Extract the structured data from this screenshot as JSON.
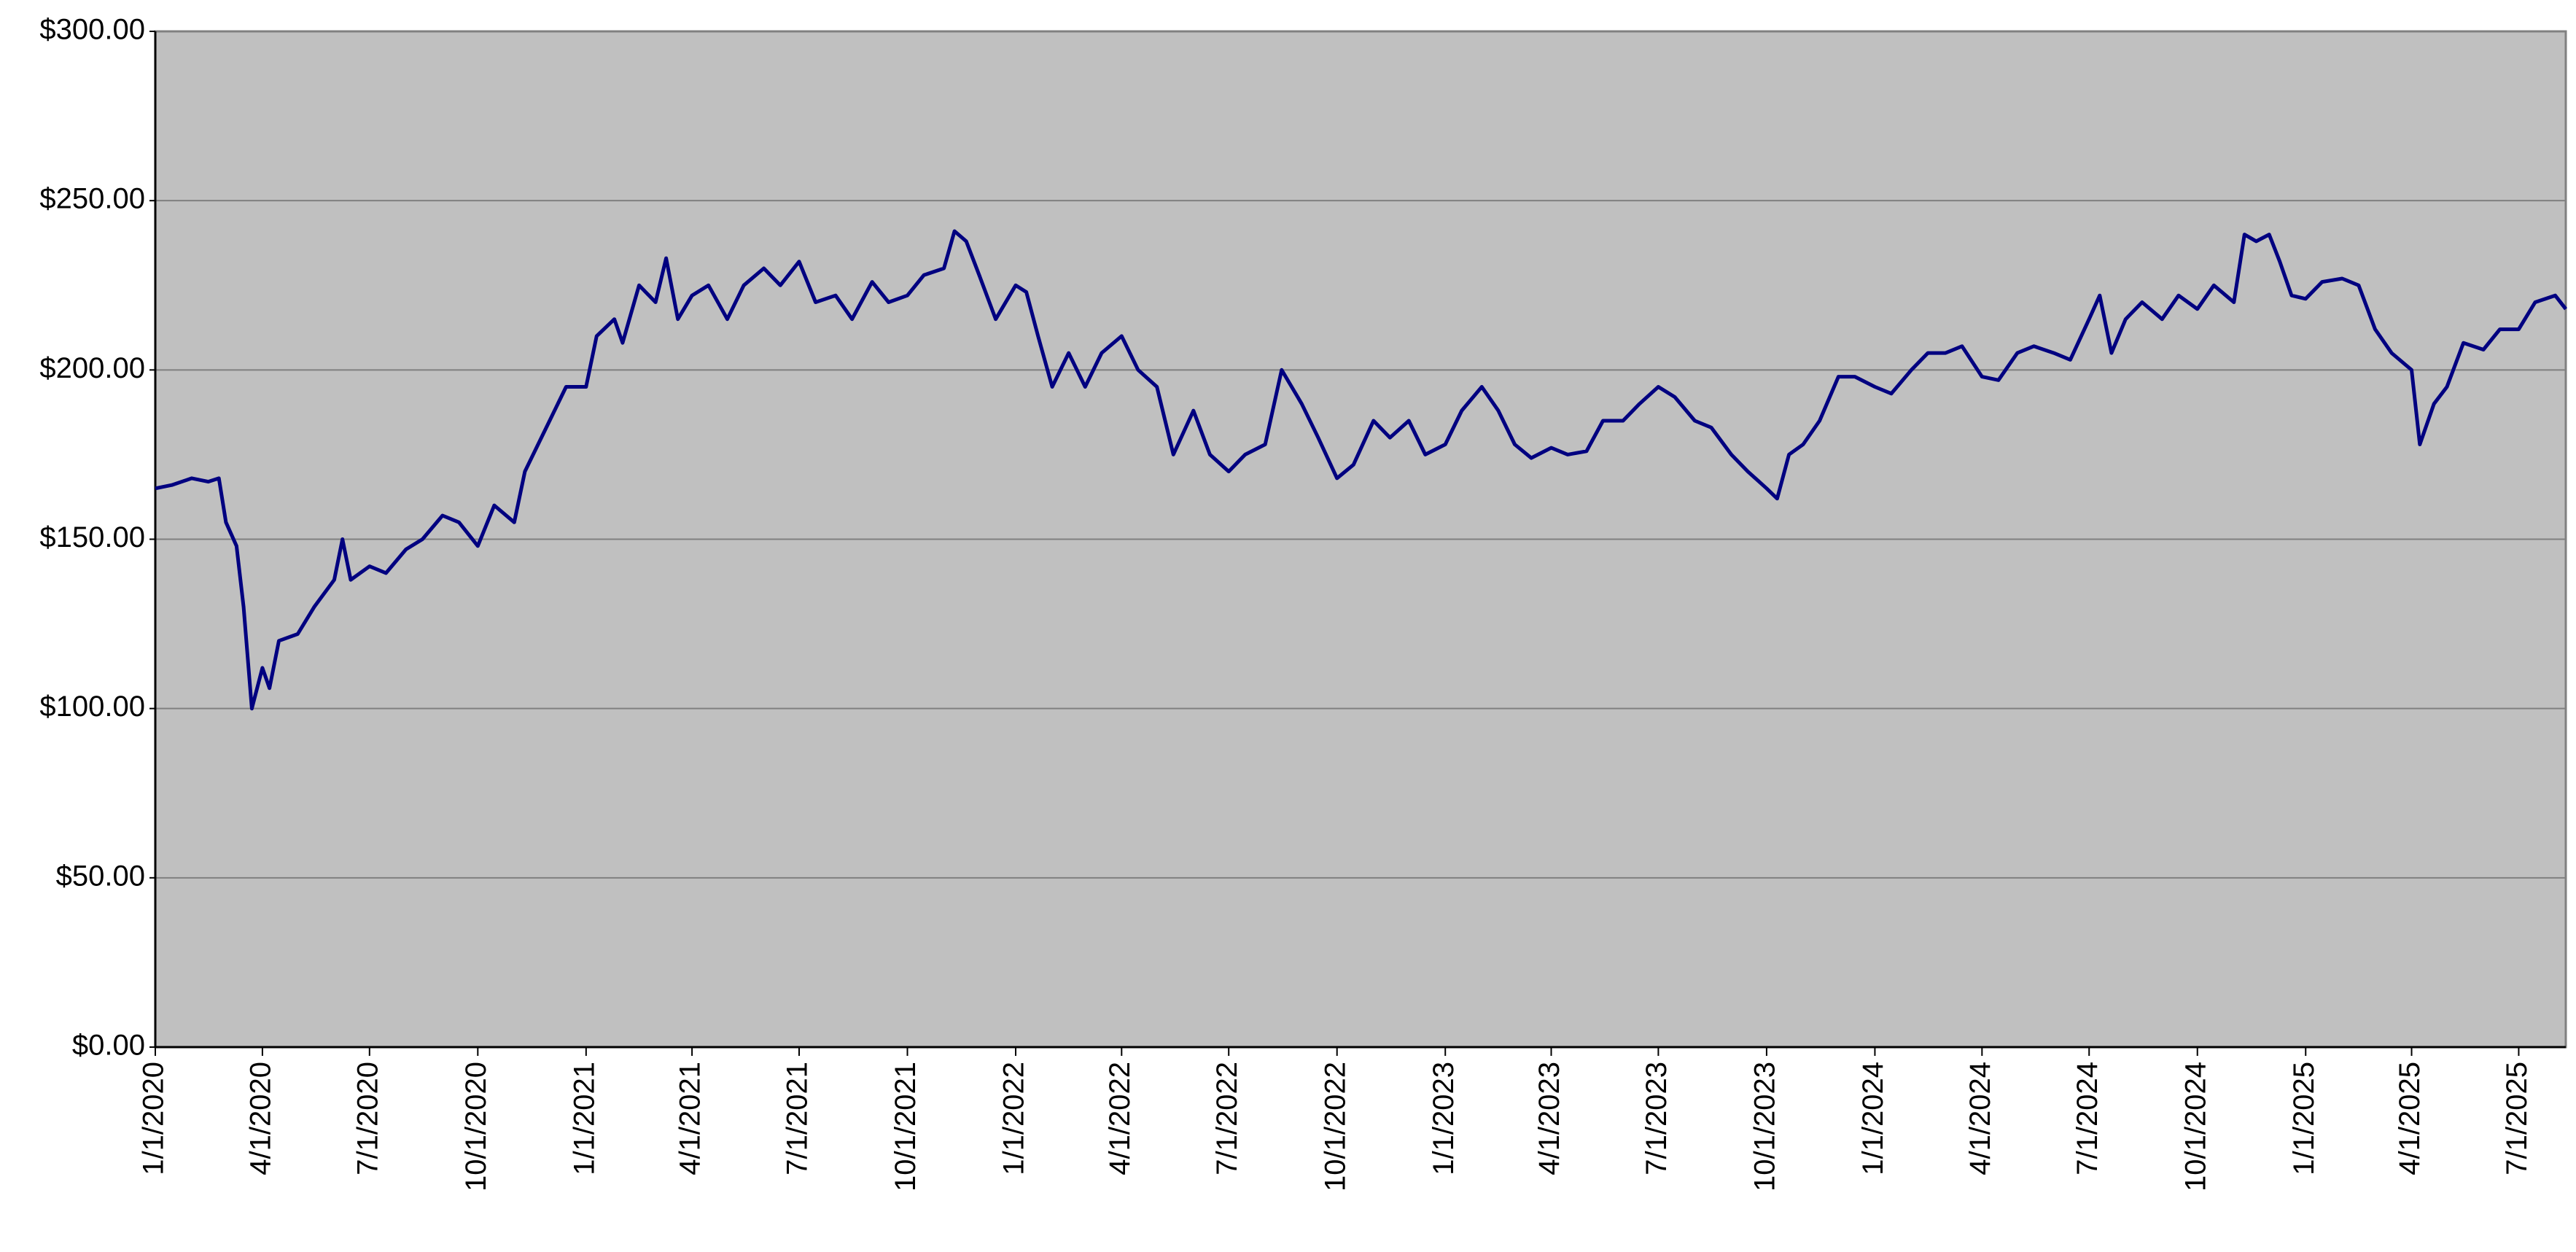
{
  "chart_data": {
    "type": "line",
    "series": [
      {
        "color": "#000080",
        "values": [
          165,
          166,
          168,
          167,
          168,
          155,
          148,
          130,
          100,
          112,
          106,
          120,
          122,
          130,
          138,
          150,
          138,
          142,
          140,
          147,
          150,
          157,
          155,
          148,
          160,
          155,
          170,
          185,
          195,
          195,
          210,
          215,
          208,
          225,
          220,
          233,
          215,
          222,
          225,
          215,
          225,
          230,
          225,
          232,
          220,
          222,
          215,
          226,
          220,
          222,
          228,
          230,
          241,
          238,
          228,
          215,
          225,
          223,
          210,
          195,
          205,
          195,
          205,
          210,
          200,
          195,
          175,
          188,
          175,
          170,
          175,
          178,
          200,
          190,
          180,
          168,
          172,
          185,
          180,
          185,
          175,
          178,
          188,
          195,
          188,
          178,
          174,
          177,
          175,
          176,
          185,
          185,
          190,
          195,
          192,
          185,
          183,
          175,
          170,
          165,
          162,
          175,
          178,
          185,
          198,
          198,
          195,
          193,
          200,
          205,
          205,
          207,
          198,
          197,
          205,
          207,
          205,
          203,
          215,
          222,
          205,
          215,
          220,
          215,
          222,
          218,
          225,
          220,
          240,
          238,
          240,
          232,
          222,
          221,
          226,
          227,
          225,
          212,
          205,
          200,
          178,
          190,
          195,
          208,
          206,
          212,
          212,
          220,
          222,
          218
        ]
      }
    ],
    "x": [
      "2020-01-01",
      "2020-01-15",
      "2020-02-01",
      "2020-02-15",
      "2020-02-24",
      "2020-03-01",
      "2020-03-10",
      "2020-03-16",
      "2020-03-23",
      "2020-04-01",
      "2020-04-07",
      "2020-04-15",
      "2020-05-01",
      "2020-05-15",
      "2020-06-01",
      "2020-06-08",
      "2020-06-15",
      "2020-07-01",
      "2020-07-15",
      "2020-08-01",
      "2020-08-15",
      "2020-09-01",
      "2020-09-15",
      "2020-10-01",
      "2020-10-15",
      "2020-11-01",
      "2020-11-10",
      "2020-12-01",
      "2020-12-15",
      "2021-01-01",
      "2021-01-10",
      "2021-01-25",
      "2021-02-01",
      "2021-02-15",
      "2021-03-01",
      "2021-03-10",
      "2021-03-20",
      "2021-04-01",
      "2021-04-15",
      "2021-05-01",
      "2021-05-15",
      "2021-06-01",
      "2021-06-15",
      "2021-07-01",
      "2021-07-15",
      "2021-08-01",
      "2021-08-15",
      "2021-09-01",
      "2021-09-15",
      "2021-10-01",
      "2021-10-15",
      "2021-11-01",
      "2021-11-10",
      "2021-11-20",
      "2021-12-01",
      "2021-12-15",
      "2022-01-01",
      "2022-01-10",
      "2022-01-20",
      "2022-02-01",
      "2022-02-15",
      "2022-03-01",
      "2022-03-15",
      "2022-04-01",
      "2022-04-15",
      "2022-05-01",
      "2022-05-15",
      "2022-06-01",
      "2022-06-15",
      "2022-07-01",
      "2022-07-15",
      "2022-08-01",
      "2022-08-15",
      "2022-09-01",
      "2022-09-15",
      "2022-10-01",
      "2022-10-15",
      "2022-11-01",
      "2022-11-15",
      "2022-12-01",
      "2022-12-15",
      "2023-01-01",
      "2023-01-15",
      "2023-02-01",
      "2023-02-15",
      "2023-03-01",
      "2023-03-15",
      "2023-04-01",
      "2023-04-15",
      "2023-05-01",
      "2023-05-15",
      "2023-06-01",
      "2023-06-15",
      "2023-07-01",
      "2023-07-15",
      "2023-08-01",
      "2023-08-15",
      "2023-09-01",
      "2023-09-15",
      "2023-10-01",
      "2023-10-10",
      "2023-10-20",
      "2023-11-01",
      "2023-11-15",
      "2023-12-01",
      "2023-12-15",
      "2024-01-01",
      "2024-01-15",
      "2024-02-01",
      "2024-02-15",
      "2024-03-01",
      "2024-03-15",
      "2024-04-01",
      "2024-04-15",
      "2024-05-01",
      "2024-05-15",
      "2024-06-01",
      "2024-06-15",
      "2024-07-01",
      "2024-07-10",
      "2024-07-20",
      "2024-08-01",
      "2024-08-15",
      "2024-09-01",
      "2024-09-15",
      "2024-10-01",
      "2024-10-15",
      "2024-11-01",
      "2024-11-10",
      "2024-11-20",
      "2024-12-01",
      "2024-12-10",
      "2024-12-20",
      "2025-01-01",
      "2025-01-15",
      "2025-02-01",
      "2025-02-15",
      "2025-03-01",
      "2025-03-15",
      "2025-04-01",
      "2025-04-08",
      "2025-04-20",
      "2025-05-01",
      "2025-05-15",
      "2025-06-01",
      "2025-06-15",
      "2025-07-01",
      "2025-07-15",
      "2025-08-01",
      "2025-08-10"
    ],
    "xlim": [
      "2020-01-01",
      "2025-08-10"
    ],
    "xticks": [
      {
        "value": "2020-01-01",
        "label": "1/1/2020"
      },
      {
        "value": "2020-04-01",
        "label": "4/1/2020"
      },
      {
        "value": "2020-07-01",
        "label": "7/1/2020"
      },
      {
        "value": "2020-10-01",
        "label": "10/1/2020"
      },
      {
        "value": "2021-01-01",
        "label": "1/1/2021"
      },
      {
        "value": "2021-04-01",
        "label": "4/1/2021"
      },
      {
        "value": "2021-07-01",
        "label": "7/1/2021"
      },
      {
        "value": "2021-10-01",
        "label": "10/1/2021"
      },
      {
        "value": "2022-01-01",
        "label": "1/1/2022"
      },
      {
        "value": "2022-04-01",
        "label": "4/1/2022"
      },
      {
        "value": "2022-07-01",
        "label": "7/1/2022"
      },
      {
        "value": "2022-10-01",
        "label": "10/1/2022"
      },
      {
        "value": "2023-01-01",
        "label": "1/1/2023"
      },
      {
        "value": "2023-04-01",
        "label": "4/1/2023"
      },
      {
        "value": "2023-07-01",
        "label": "7/1/2023"
      },
      {
        "value": "2023-10-01",
        "label": "10/1/2023"
      },
      {
        "value": "2024-01-01",
        "label": "1/1/2024"
      },
      {
        "value": "2024-04-01",
        "label": "4/1/2024"
      },
      {
        "value": "2024-07-01",
        "label": "7/1/2024"
      },
      {
        "value": "2024-10-01",
        "label": "10/1/2024"
      },
      {
        "value": "2025-01-01",
        "label": "1/1/2025"
      },
      {
        "value": "2025-04-01",
        "label": "4/1/2025"
      },
      {
        "value": "2025-07-01",
        "label": "7/1/2025"
      }
    ],
    "ylim": [
      0,
      300
    ],
    "yticks": [
      {
        "value": 0,
        "label": "$0.00"
      },
      {
        "value": 50,
        "label": "$50.00"
      },
      {
        "value": 100,
        "label": "$100.00"
      },
      {
        "value": 150,
        "label": "$150.00"
      },
      {
        "value": 200,
        "label": "$200.00"
      },
      {
        "value": 250,
        "label": "$250.00"
      },
      {
        "value": 300,
        "label": "$300.00"
      }
    ],
    "grid": true
  }
}
